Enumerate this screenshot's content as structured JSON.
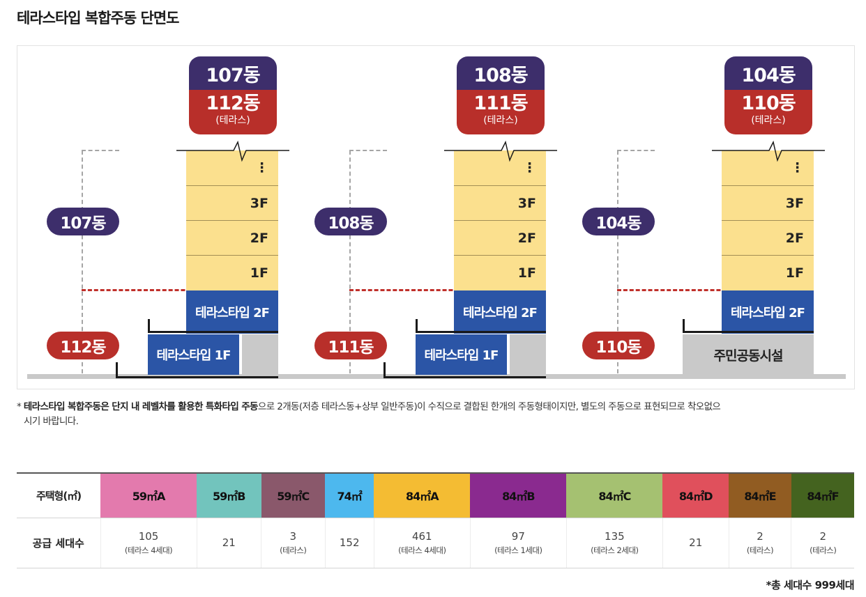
{
  "title": "테라스타입 복합주동 단면도",
  "diagram": {
    "groups": [
      {
        "upper_building": "107동",
        "lower_building": "112동",
        "tag_sub": "(테라스)"
      },
      {
        "upper_building": "108동",
        "lower_building": "111동",
        "tag_sub": "(테라스)"
      },
      {
        "upper_building": "104동",
        "lower_building": "110동",
        "tag_sub": "(테라스)"
      }
    ],
    "floors": [
      "⋮",
      "3F",
      "2F",
      "1F"
    ],
    "terrace_2f": "테라스타입 2F",
    "terrace_1f": "테라스타입 1F",
    "community_facility": "주민공동시설",
    "colors": {
      "purple": "#3d2e6b",
      "red": "#b82f2a",
      "blue": "#2b55a6",
      "yellow": "#fbe08e",
      "gray": "#c9c9c9"
    }
  },
  "note": {
    "bullet": "*",
    "bold": "테라스타입 복합주동은 단지 내 레벨차를 활용한 특화타입 주동",
    "rest": "으로 2개동(저층 테라스동+상부 일반주동)이 수직으로 결합된 한개의 주동형태이지만, 별도의 주동으로 표현되므로 착오없으",
    "line2": "시기 바랍니다."
  },
  "table": {
    "type_header": "주택형(㎡)",
    "count_header": "공급 세대수",
    "units": [
      {
        "type": "59㎡A",
        "color": "#e37aad",
        "count": "105",
        "sub": "(테라스 4세대)"
      },
      {
        "type": "59㎡B",
        "color": "#72c4bd",
        "count": "21",
        "sub": ""
      },
      {
        "type": "59㎡C",
        "color": "#8a586b",
        "count": "3",
        "sub": "(테라스)"
      },
      {
        "type": "74㎡",
        "color": "#4db8ee",
        "count": "152",
        "sub": ""
      },
      {
        "type": "84㎡A",
        "color": "#f4bc33",
        "count": "461",
        "sub": "(테라스 4세대)"
      },
      {
        "type": "84㎡B",
        "color": "#8a2a8f",
        "count": "97",
        "sub": "(테라스 1세대)"
      },
      {
        "type": "84㎡C",
        "color": "#a5c171",
        "count": "135",
        "sub": "(테라스 2세대)"
      },
      {
        "type": "84㎡D",
        "color": "#e0505c",
        "count": "21",
        "sub": ""
      },
      {
        "type": "84㎡E",
        "color": "#915c22",
        "count": "2",
        "sub": "(테라스)"
      },
      {
        "type": "84㎡F",
        "color": "#44631f",
        "count": "2",
        "sub": "(테라스)"
      }
    ],
    "total": "*총 세대수 999세대"
  }
}
